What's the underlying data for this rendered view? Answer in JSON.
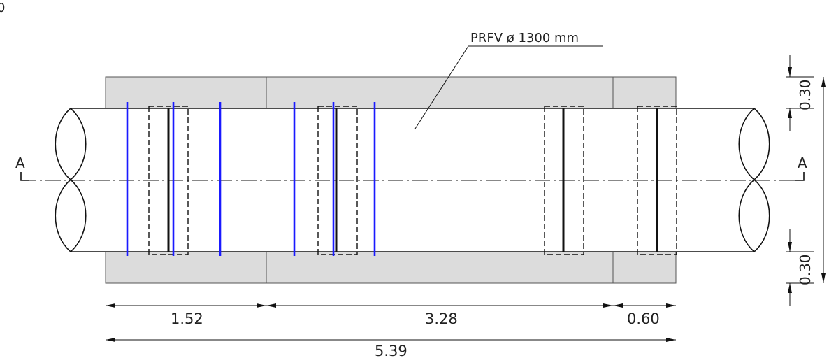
{
  "corner_label": "0",
  "pipe_label": "PRFV ø 1300 mm",
  "section": {
    "left_label": "A",
    "right_label": "A"
  },
  "dimensions": {
    "seg1": "1.52",
    "seg2": "3.28",
    "seg3": "0.60",
    "total": "5.39",
    "top_clearance": "0.30",
    "bottom_clearance": "0.30"
  },
  "colors": {
    "slab_fill": "#dcdcdc",
    "line": "#111111",
    "blue": "#1a1aff"
  }
}
